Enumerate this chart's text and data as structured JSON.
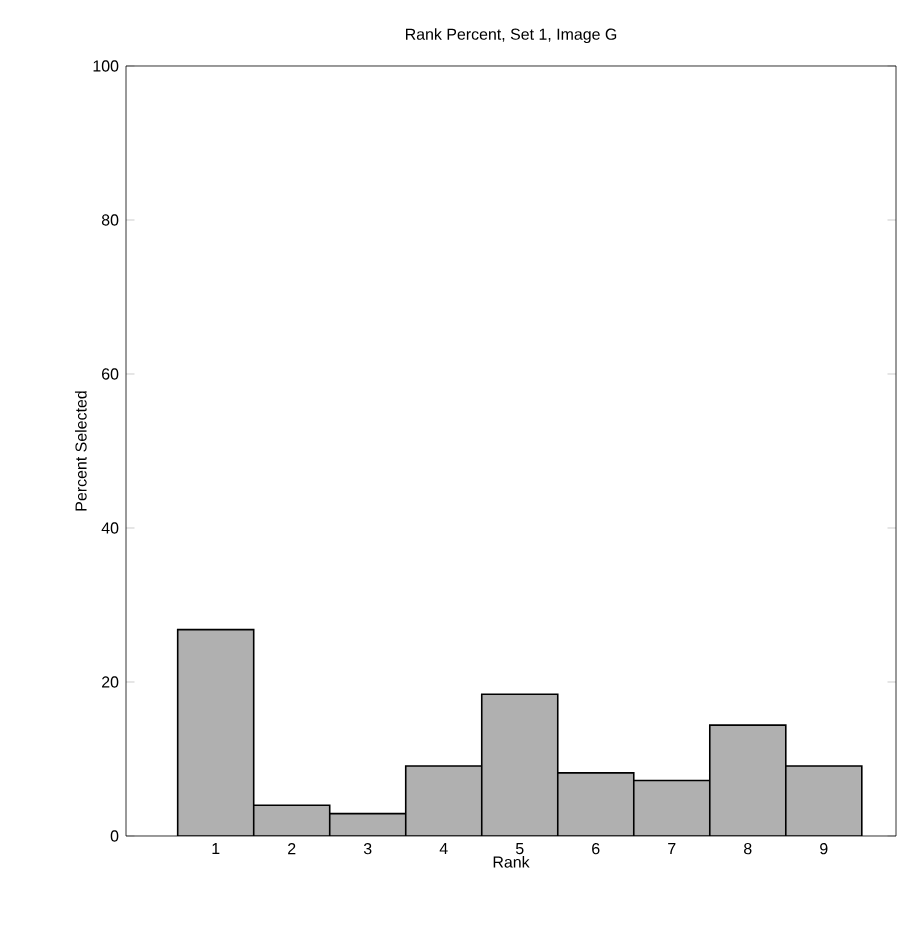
{
  "chart_data": {
    "type": "bar",
    "title": "Rank Percent, Set 1, Image G",
    "xlabel": "Rank",
    "ylabel": "Percent Selected",
    "categories": [
      "1",
      "2",
      "3",
      "4",
      "5",
      "6",
      "7",
      "8",
      "9"
    ],
    "values": [
      26.8,
      4.0,
      2.9,
      9.1,
      18.4,
      8.2,
      7.2,
      14.4,
      9.1
    ],
    "color": "#b0b0b0",
    "ylim": [
      0,
      100
    ],
    "yticks": [
      0,
      20,
      40,
      60,
      80,
      100
    ],
    "grid": false
  }
}
